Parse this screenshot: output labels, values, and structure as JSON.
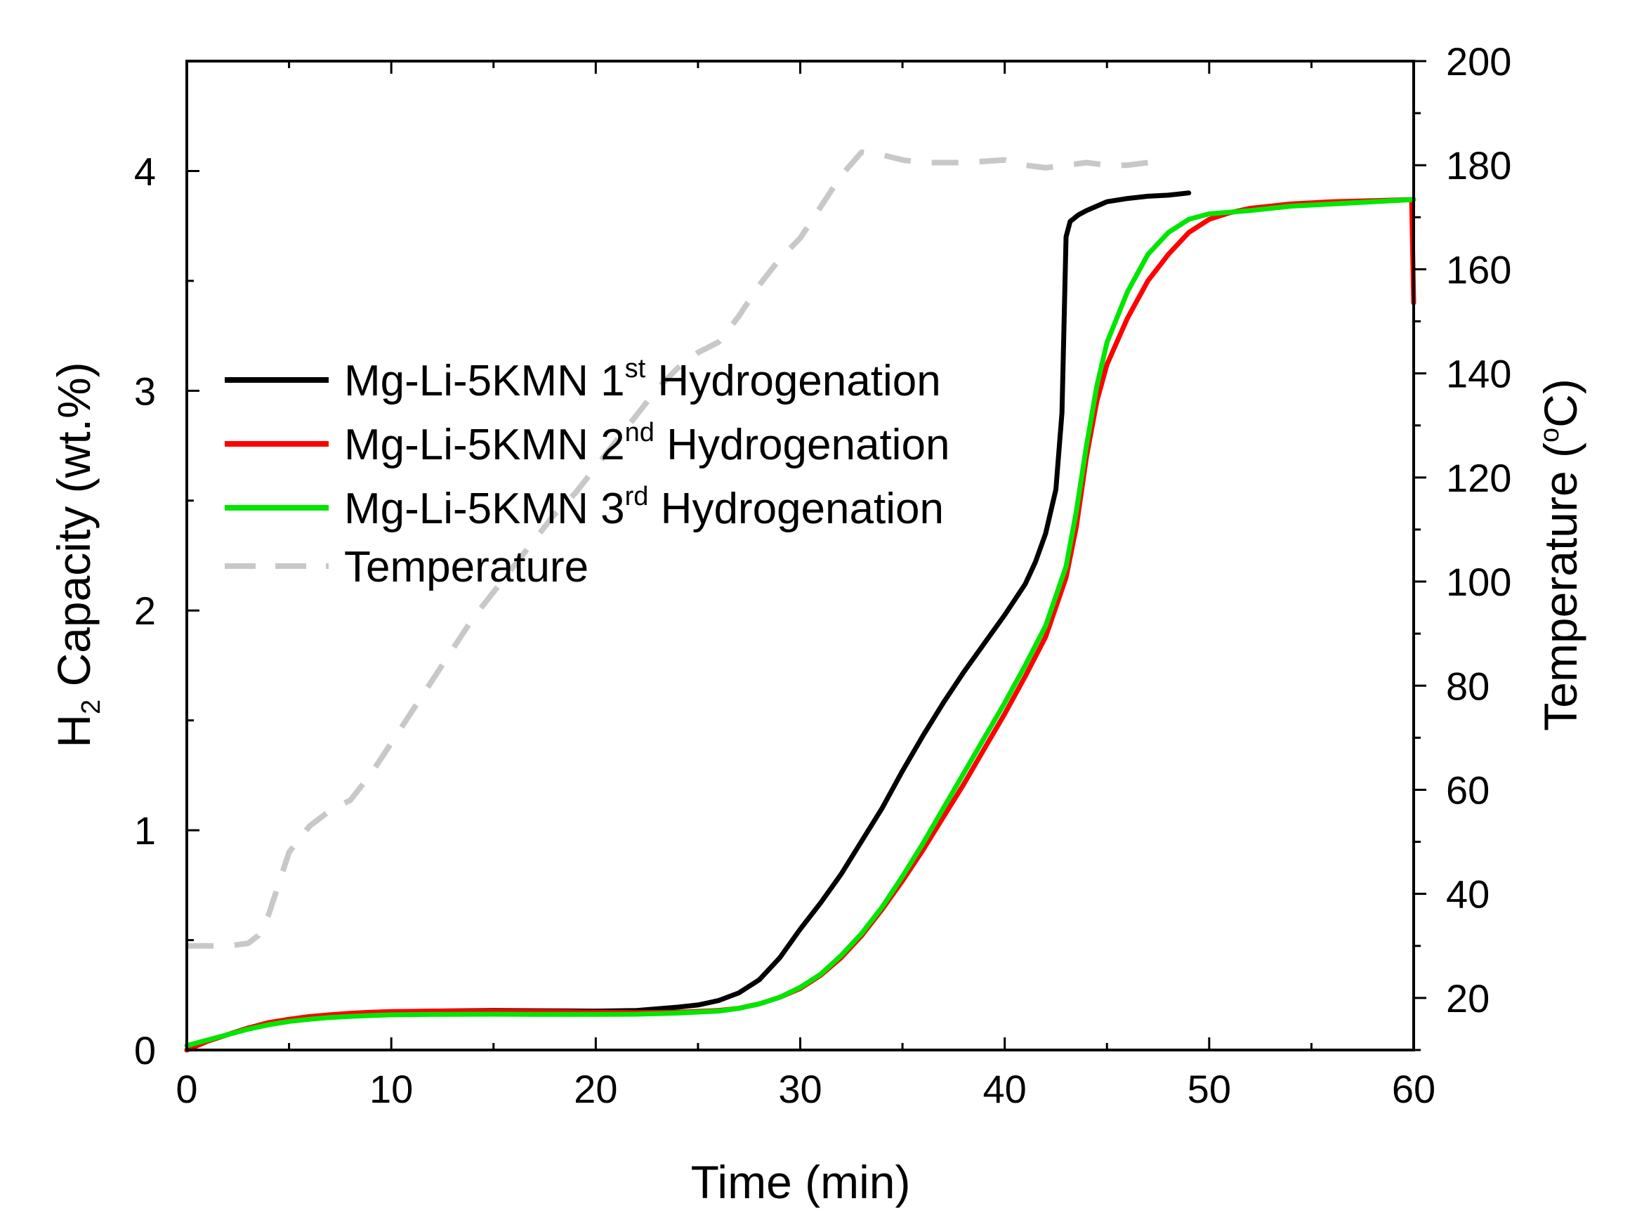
{
  "chart_data": {
    "type": "line",
    "x": {
      "label": "Time (min)",
      "lim": [
        0,
        60
      ],
      "ticks": [
        0,
        10,
        20,
        30,
        40,
        50,
        60
      ]
    },
    "y_left": {
      "label_main": "H",
      "label_sub": "2",
      "label_rest": " Capacity (wt.%)",
      "lim": [
        0,
        4.5
      ],
      "ticks": [
        0,
        1,
        2,
        3,
        4
      ]
    },
    "y_right": {
      "label_main": "Temperature (",
      "label_sup": "o",
      "label_rest": "C)",
      "lim": [
        10,
        200
      ],
      "ticks": [
        20,
        40,
        60,
        80,
        100,
        120,
        140,
        160,
        180,
        200
      ]
    },
    "grid": false,
    "legend_position": "upper-left",
    "series": [
      {
        "name": "Mg-Li-5KMN 1st Hydrogenation",
        "legend_prefix": "Mg-Li-5KMN 1",
        "legend_sup": "st",
        "legend_suffix": " Hydrogenation",
        "color": "#000000",
        "axis": "left",
        "style": "solid",
        "points": [
          [
            0,
            0
          ],
          [
            1,
            0.04
          ],
          [
            2,
            0.07
          ],
          [
            3,
            0.1
          ],
          [
            4,
            0.12
          ],
          [
            5,
            0.135
          ],
          [
            6,
            0.148
          ],
          [
            7,
            0.158
          ],
          [
            8,
            0.165
          ],
          [
            9,
            0.17
          ],
          [
            10,
            0.173
          ],
          [
            12,
            0.177
          ],
          [
            15,
            0.18
          ],
          [
            18,
            0.178
          ],
          [
            20,
            0.177
          ],
          [
            22,
            0.18
          ],
          [
            24,
            0.195
          ],
          [
            25,
            0.205
          ],
          [
            26,
            0.225
          ],
          [
            27,
            0.26
          ],
          [
            28,
            0.32
          ],
          [
            29,
            0.42
          ],
          [
            30,
            0.55
          ],
          [
            31,
            0.67
          ],
          [
            32,
            0.8
          ],
          [
            33,
            0.95
          ],
          [
            34,
            1.1
          ],
          [
            35,
            1.27
          ],
          [
            36,
            1.43
          ],
          [
            37,
            1.58
          ],
          [
            38,
            1.72
          ],
          [
            39,
            1.85
          ],
          [
            40,
            1.98
          ],
          [
            41,
            2.12
          ],
          [
            41.5,
            2.22
          ],
          [
            42,
            2.35
          ],
          [
            42.5,
            2.55
          ],
          [
            42.8,
            2.9
          ],
          [
            42.9,
            3.3
          ],
          [
            43,
            3.7
          ],
          [
            43.2,
            3.77
          ],
          [
            43.6,
            3.8
          ],
          [
            44,
            3.82
          ],
          [
            44.5,
            3.84
          ],
          [
            45,
            3.86
          ],
          [
            46,
            3.875
          ],
          [
            47,
            3.885
          ],
          [
            48,
            3.89
          ],
          [
            49,
            3.9
          ]
        ]
      },
      {
        "name": "Mg-Li-5KMN 2nd Hydrogenation",
        "legend_prefix": "Mg-Li-5KMN 2",
        "legend_sup": "nd",
        "legend_suffix": " Hydrogenation",
        "color": "#ff0000",
        "axis": "left",
        "style": "solid",
        "points": [
          [
            0,
            0
          ],
          [
            1,
            0.04
          ],
          [
            2,
            0.07
          ],
          [
            3,
            0.1
          ],
          [
            4,
            0.125
          ],
          [
            5,
            0.14
          ],
          [
            6,
            0.152
          ],
          [
            7,
            0.16
          ],
          [
            8,
            0.167
          ],
          [
            9,
            0.172
          ],
          [
            10,
            0.175
          ],
          [
            12,
            0.177
          ],
          [
            15,
            0.177
          ],
          [
            18,
            0.175
          ],
          [
            20,
            0.172
          ],
          [
            22,
            0.17
          ],
          [
            24,
            0.172
          ],
          [
            26,
            0.18
          ],
          [
            27,
            0.19
          ],
          [
            28,
            0.21
          ],
          [
            29,
            0.24
          ],
          [
            30,
            0.28
          ],
          [
            31,
            0.34
          ],
          [
            32,
            0.42
          ],
          [
            33,
            0.52
          ],
          [
            34,
            0.64
          ],
          [
            35,
            0.77
          ],
          [
            36,
            0.91
          ],
          [
            37,
            1.06
          ],
          [
            38,
            1.21
          ],
          [
            39,
            1.37
          ],
          [
            40,
            1.53
          ],
          [
            41,
            1.7
          ],
          [
            42,
            1.88
          ],
          [
            43,
            2.15
          ],
          [
            43.5,
            2.38
          ],
          [
            44,
            2.7
          ],
          [
            44.5,
            2.95
          ],
          [
            45,
            3.12
          ],
          [
            46,
            3.33
          ],
          [
            47,
            3.5
          ],
          [
            48,
            3.62
          ],
          [
            49,
            3.72
          ],
          [
            50,
            3.78
          ],
          [
            51,
            3.81
          ],
          [
            52,
            3.83
          ],
          [
            54,
            3.85
          ],
          [
            56,
            3.86
          ],
          [
            58,
            3.865
          ],
          [
            59.9,
            3.87
          ],
          [
            60,
            3.4
          ]
        ]
      },
      {
        "name": "Mg-Li-5KMN 3rd Hydrogenation",
        "legend_prefix": "Mg-Li-5KMN 3",
        "legend_sup": "rd",
        "legend_suffix": " Hydrogenation",
        "color": "#00e600",
        "axis": "left",
        "style": "solid",
        "points": [
          [
            0,
            0.02
          ],
          [
            1,
            0.045
          ],
          [
            2,
            0.07
          ],
          [
            3,
            0.095
          ],
          [
            4,
            0.115
          ],
          [
            5,
            0.13
          ],
          [
            6,
            0.14
          ],
          [
            7,
            0.148
          ],
          [
            8,
            0.153
          ],
          [
            9,
            0.157
          ],
          [
            10,
            0.16
          ],
          [
            12,
            0.162
          ],
          [
            15,
            0.163
          ],
          [
            18,
            0.162
          ],
          [
            20,
            0.162
          ],
          [
            22,
            0.163
          ],
          [
            24,
            0.168
          ],
          [
            26,
            0.177
          ],
          [
            27,
            0.19
          ],
          [
            28,
            0.21
          ],
          [
            29,
            0.24
          ],
          [
            30,
            0.285
          ],
          [
            31,
            0.345
          ],
          [
            32,
            0.43
          ],
          [
            33,
            0.53
          ],
          [
            34,
            0.65
          ],
          [
            35,
            0.79
          ],
          [
            36,
            0.94
          ],
          [
            37,
            1.1
          ],
          [
            38,
            1.26
          ],
          [
            39,
            1.42
          ],
          [
            40,
            1.58
          ],
          [
            41,
            1.75
          ],
          [
            42,
            1.93
          ],
          [
            43,
            2.2
          ],
          [
            43.5,
            2.45
          ],
          [
            44,
            2.75
          ],
          [
            44.5,
            3.02
          ],
          [
            45,
            3.22
          ],
          [
            46,
            3.45
          ],
          [
            47,
            3.62
          ],
          [
            48,
            3.72
          ],
          [
            49,
            3.78
          ],
          [
            50,
            3.805
          ],
          [
            52,
            3.82
          ],
          [
            54,
            3.84
          ],
          [
            56,
            3.85
          ],
          [
            58,
            3.86
          ],
          [
            60,
            3.87
          ]
        ]
      },
      {
        "name": "Temperature",
        "legend_prefix": "Temperature",
        "legend_sup": "",
        "legend_suffix": "",
        "color": "#c8c8c8",
        "axis": "right",
        "style": "dashed",
        "points": [
          [
            0,
            30
          ],
          [
            1,
            30
          ],
          [
            2,
            30
          ],
          [
            3,
            30.5
          ],
          [
            3.5,
            32
          ],
          [
            4,
            36
          ],
          [
            4.5,
            42
          ],
          [
            5,
            48
          ],
          [
            6,
            53
          ],
          [
            7,
            56
          ],
          [
            8,
            58
          ],
          [
            9,
            63
          ],
          [
            10,
            69
          ],
          [
            11,
            75
          ],
          [
            12,
            81
          ],
          [
            13,
            87
          ],
          [
            14,
            93
          ],
          [
            15,
            98
          ],
          [
            16,
            103
          ],
          [
            17,
            108
          ],
          [
            18,
            113
          ],
          [
            19,
            117
          ],
          [
            20,
            122
          ],
          [
            21,
            127
          ],
          [
            22,
            132
          ],
          [
            23,
            137
          ],
          [
            24,
            141
          ],
          [
            25,
            144
          ],
          [
            26,
            146
          ],
          [
            27,
            151
          ],
          [
            28,
            157
          ],
          [
            29,
            162
          ],
          [
            30,
            166
          ],
          [
            31,
            172
          ],
          [
            32,
            178
          ],
          [
            33,
            182.5
          ],
          [
            34,
            182
          ],
          [
            35,
            181
          ],
          [
            36,
            180.5
          ],
          [
            38,
            180.5
          ],
          [
            40,
            181
          ],
          [
            41,
            180
          ],
          [
            42,
            179.5
          ],
          [
            43,
            180
          ],
          [
            44,
            180.5
          ],
          [
            45,
            180
          ],
          [
            46,
            180
          ],
          [
            47,
            180.5
          ],
          [
            48,
            180
          ]
        ]
      }
    ]
  }
}
